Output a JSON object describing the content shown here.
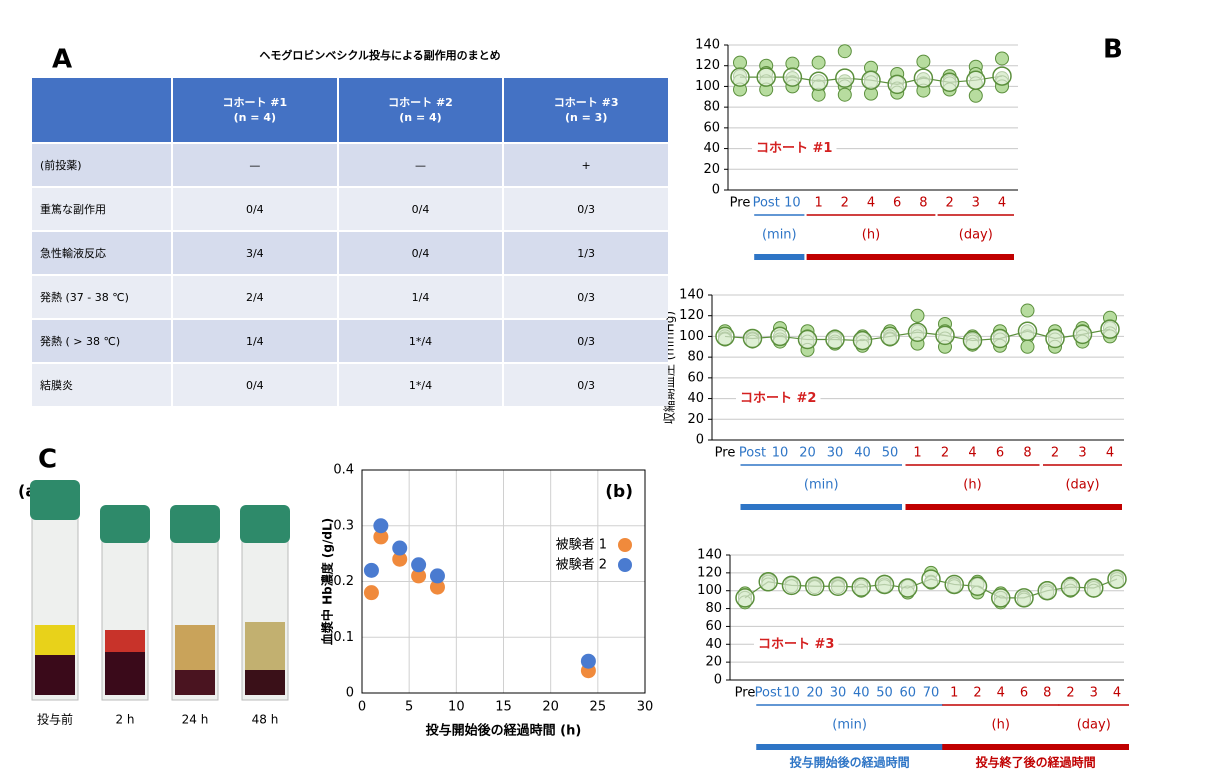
{
  "panels": {
    "a": "A",
    "b": "B",
    "c": "C",
    "c_sub": "(a)"
  },
  "table": {
    "title": "ヘモグロビンベシクル投与による副作用のまとめ",
    "columns": [
      {
        "name": "コホート #1",
        "n": "(n = 4)"
      },
      {
        "name": "コホート #2",
        "n": "(n = 4)"
      },
      {
        "name": "コホート #3",
        "n": "(n = 3)"
      }
    ],
    "rows": [
      [
        "(前投薬)",
        "—",
        "—",
        "+"
      ],
      [
        "重篤な副作用",
        "0/4",
        "0/4",
        "0/3"
      ],
      [
        "急性輸液反応",
        "3/4",
        "0/4",
        "1/3"
      ],
      [
        "発熱 (37 - 38 ℃)",
        "2/4",
        "1/4",
        "0/3"
      ],
      [
        "発熱 ( > 38 ℃)",
        "1/4",
        "1*/4",
        "0/3"
      ],
      [
        "結膜炎",
        "0/4",
        "1*/4",
        "0/3"
      ]
    ]
  },
  "photos": {
    "labels": [
      "投与前",
      "2 h",
      "24 h",
      "48 h"
    ]
  },
  "chart_data": [
    {
      "type": "dot",
      "title": "コホート #1",
      "ylim": [
        0,
        140
      ],
      "yticks": [
        0,
        20,
        40,
        60,
        80,
        100,
        120,
        140
      ],
      "grid": true,
      "category_groups": [
        {
          "color": "#000000",
          "categories": [
            "Pre"
          ]
        },
        {
          "label": "(min)",
          "color": "#2e75c6",
          "categories": [
            "Post",
            "10"
          ]
        },
        {
          "label": "(h)",
          "color": "#c00000",
          "categories": [
            "1",
            "2",
            "4",
            "6",
            "8"
          ]
        },
        {
          "label": "(day)",
          "color": "#c00000",
          "categories": [
            "2",
            "3",
            "4"
          ]
        }
      ],
      "series": [
        {
          "color": "#b7dc9f",
          "values": [
            123,
            120,
            122,
            123,
            134,
            118,
            112,
            124,
            110,
            119,
            127
          ]
        },
        {
          "color": "#b7dc9f",
          "values": [
            110,
            113,
            108,
            105,
            105,
            108,
            104,
            107,
            105,
            112,
            108
          ]
        },
        {
          "color": "#b7dc9f",
          "values": [
            105,
            105,
            104,
            100,
            100,
            104,
            98,
            103,
            103,
            103,
            104
          ]
        },
        {
          "color": "#b7dc9f",
          "values": [
            97,
            97,
            100,
            92,
            92,
            93,
            94,
            96,
            97,
            91,
            100
          ]
        },
        {
          "color": "#5b8f3c",
          "marker": "open-circle",
          "line": true,
          "values": [
            109,
            109,
            109,
            105,
            108,
            106,
            102,
            108,
            104,
            106,
            110
          ]
        }
      ]
    },
    {
      "type": "dot",
      "title": "コホート #2",
      "ylabel": "収縮期血圧 (mmHg)",
      "ylim": [
        0,
        140
      ],
      "yticks": [
        0,
        20,
        40,
        60,
        80,
        100,
        120,
        140
      ],
      "grid": true,
      "category_groups": [
        {
          "color": "#000000",
          "categories": [
            "Pre"
          ]
        },
        {
          "label": "(min)",
          "color": "#2e75c6",
          "categories": [
            "Post",
            "10",
            "20",
            "30",
            "40",
            "50"
          ]
        },
        {
          "label": "(h)",
          "color": "#c00000",
          "categories": [
            "1",
            "2",
            "4",
            "6",
            "8"
          ]
        },
        {
          "label": "(day)",
          "color": "#c00000",
          "categories": [
            "2",
            "3",
            "4"
          ]
        }
      ],
      "series": [
        {
          "color": "#b7dc9f",
          "values": [
            105,
            100,
            108,
            105,
            100,
            100,
            105,
            120,
            112,
            100,
            105,
            125,
            105,
            108,
            118
          ]
        },
        {
          "color": "#b7dc9f",
          "values": [
            100,
            98,
            100,
            100,
            98,
            98,
            100,
            105,
            105,
            97,
            100,
            105,
            100,
            105,
            108
          ]
        },
        {
          "color": "#b7dc9f",
          "values": [
            98,
            97,
            97,
            95,
            95,
            95,
            98,
            100,
            98,
            95,
            97,
            100,
            97,
            100,
            103
          ]
        },
        {
          "color": "#b7dc9f",
          "values": [
            97,
            95,
            95,
            87,
            93,
            91,
            97,
            93,
            90,
            92,
            91,
            90,
            90,
            95,
            100
          ]
        },
        {
          "color": "#5b8f3c",
          "marker": "open-circle",
          "line": true,
          "values": [
            100,
            98,
            100,
            97,
            97,
            96,
            100,
            104,
            101,
            96,
            98,
            105,
            98,
            102,
            107
          ]
        }
      ]
    },
    {
      "type": "dot",
      "title": "コホート #3",
      "ylim": [
        0,
        140
      ],
      "yticks": [
        0,
        20,
        40,
        60,
        80,
        100,
        120,
        140
      ],
      "grid": true,
      "annotations": [
        "投与開始後の経過時間",
        "投与終了後の経過時間"
      ],
      "category_groups": [
        {
          "color": "#000000",
          "categories": [
            "Pre"
          ]
        },
        {
          "label": "(min)",
          "color": "#2e75c6",
          "categories": [
            "Post",
            "10",
            "20",
            "30",
            "40",
            "50",
            "60",
            "70"
          ]
        },
        {
          "label": "(h)",
          "color": "#c00000",
          "categories": [
            "1",
            "2",
            "4",
            "6",
            "8"
          ]
        },
        {
          "label": "(day)",
          "color": "#c00000",
          "categories": [
            "2",
            "3",
            "4"
          ]
        }
      ],
      "series": [
        {
          "color": "#b7dc9f",
          "values": [
            97,
            112,
            108,
            107,
            107,
            107,
            110,
            105,
            120,
            108,
            110,
            97,
            93,
            103,
            108,
            105,
            115
          ]
        },
        {
          "color": "#b7dc9f",
          "values": [
            92,
            110,
            105,
            105,
            105,
            105,
            107,
            105,
            110,
            107,
            107,
            92,
            92,
            100,
            105,
            103,
            113
          ]
        },
        {
          "color": "#b7dc9f",
          "values": [
            87,
            107,
            105,
            104,
            104,
            100,
            105,
            98,
            109,
            105,
            98,
            87,
            90,
            98,
            100,
            100,
            110
          ]
        },
        {
          "color": "#5b8f3c",
          "marker": "open-circle",
          "line": true,
          "values": [
            92,
            110,
            106,
            105,
            105,
            104,
            107,
            103,
            113,
            107,
            105,
            92,
            92,
            100,
            104,
            103,
            113
          ]
        }
      ]
    },
    {
      "type": "scatter",
      "annotation": "(b)",
      "xlabel": "投与開始後の経過時間 (h)",
      "ylabel": "血漿中 Hb濃度 (g/dL)",
      "xlim": [
        0,
        30
      ],
      "xticks": [
        0,
        5,
        10,
        15,
        20,
        25,
        30
      ],
      "ylim": [
        0,
        0.4
      ],
      "yticks": [
        0,
        0.1,
        0.2,
        0.3,
        0.4
      ],
      "grid": true,
      "legend": "right",
      "series": [
        {
          "name": "被験者 1",
          "color": "#f08a3c",
          "x": [
            1,
            2,
            4,
            6,
            8,
            24
          ],
          "values": [
            0.18,
            0.28,
            0.24,
            0.21,
            0.19,
            0.04
          ]
        },
        {
          "name": "被験者 2",
          "color": "#4a7bd0",
          "x": [
            1,
            2,
            4,
            6,
            8,
            24
          ],
          "values": [
            0.22,
            0.3,
            0.26,
            0.23,
            0.21,
            0.057
          ]
        }
      ]
    }
  ]
}
